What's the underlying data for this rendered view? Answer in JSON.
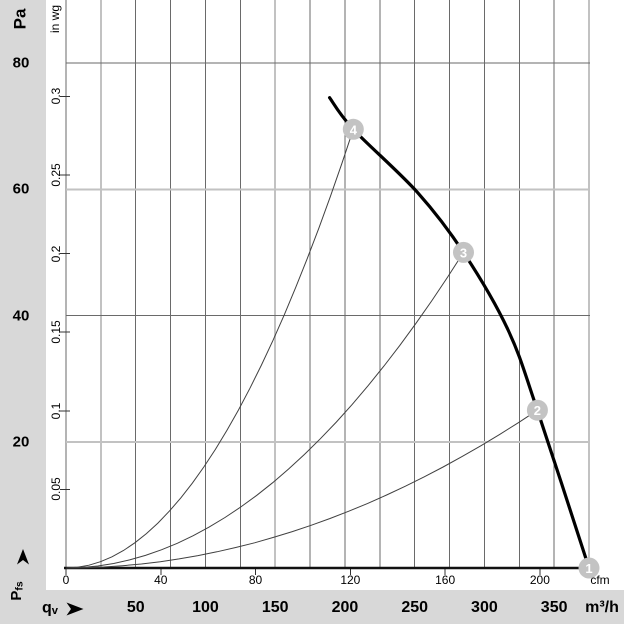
{
  "units": {
    "pressure_primary": "Pa",
    "pressure_secondary": "in wg",
    "flow_primary": "m³/h",
    "flow_secondary": "cfm",
    "flow_symbol_main": "q",
    "flow_symbol_sub": "v",
    "pressure_symbol_main": "P",
    "pressure_symbol_sub": "fs"
  },
  "colors": {
    "background": "#d8d8d8",
    "panel": "#ffffff",
    "grid_dark": "#6a6a6a",
    "grid_light": "#c2c2c2",
    "axis": "#111111",
    "tick": "#333333",
    "fan_curve": "#000000",
    "system_curve": "#404040",
    "marker_fill": "#c3c3c3",
    "marker_text": "#ffffff"
  },
  "chart_data": {
    "type": "line",
    "title": "",
    "x_axis": {
      "label": "qv",
      "unit_primary": "m³/h",
      "ticks_m3h": [
        50,
        100,
        150,
        200,
        250,
        300,
        350
      ],
      "unit_secondary": "cfm",
      "ticks_cfm": [
        0,
        40,
        80,
        120,
        160,
        200
      ],
      "range_m3h": [
        0,
        375
      ],
      "grid_step_m3h": 25,
      "emphasized_grid_m3h": [
        25,
        150,
        375
      ]
    },
    "y_axis": {
      "label": "Pfs",
      "unit_primary": "Pa",
      "ticks_pa": [
        20,
        40,
        60,
        80
      ],
      "unit_secondary": "in wg",
      "ticks_inwg": [
        "0.05",
        "0.1",
        "0.15",
        "0.2",
        "0.25",
        "0.3"
      ],
      "range_pa": [
        0,
        90
      ],
      "emphasized_grid_pa": [
        20,
        60
      ]
    },
    "legend": "none",
    "grid": "on",
    "fan_curve_m3h_pa": [
      [
        189,
        74.5
      ],
      [
        206,
        69.5
      ],
      [
        252,
        59.5
      ],
      [
        285,
        50
      ],
      [
        317,
        37.7
      ],
      [
        338,
        25
      ],
      [
        375,
        0
      ]
    ],
    "system_curves": [
      {
        "endpoint_m3h_pa": [
          206,
          69.5
        ]
      },
      {
        "endpoint_m3h_pa": [
          285,
          50
        ]
      },
      {
        "endpoint_m3h_pa": [
          338,
          25
        ]
      }
    ],
    "operating_points": [
      {
        "label": "1",
        "m3h": 375,
        "pa": 0,
        "inwg": "0",
        "cfm": 220
      },
      {
        "label": "2",
        "m3h": 338,
        "pa": 25,
        "inwg": "0.1",
        "cfm": 199
      },
      {
        "label": "3",
        "m3h": 285,
        "pa": 50,
        "inwg": "0.2",
        "cfm": 167
      },
      {
        "label": "4",
        "m3h": 206,
        "pa": 69.5,
        "inwg": "0.28",
        "cfm": 121
      }
    ]
  }
}
